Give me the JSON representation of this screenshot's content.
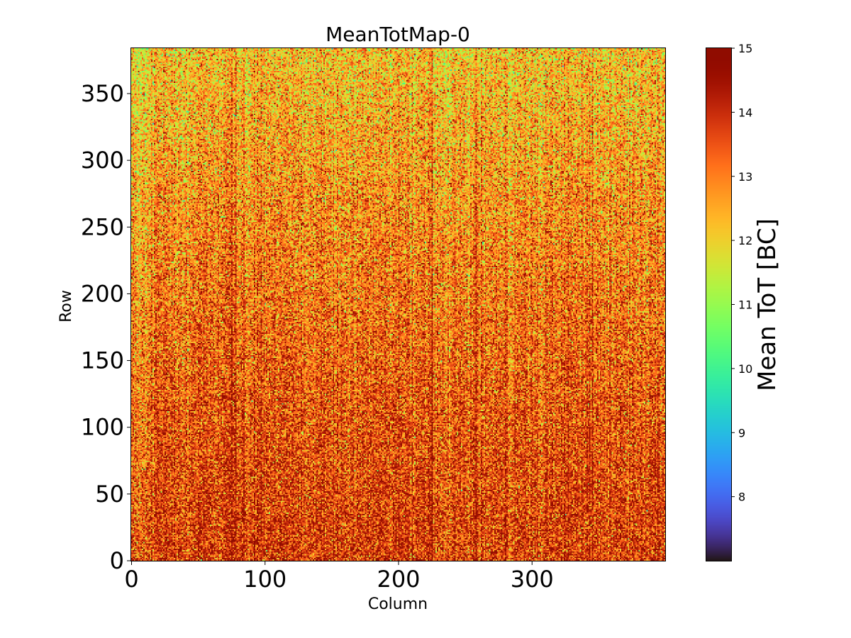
{
  "chart_data": {
    "type": "heatmap",
    "title": "MeanTotMap-0",
    "xlabel": "Column",
    "ylabel": "Row",
    "xlim": [
      0,
      400
    ],
    "ylim": [
      0,
      384
    ],
    "x_ticks": [
      0,
      100,
      200,
      300
    ],
    "y_ticks": [
      0,
      50,
      100,
      150,
      200,
      250,
      300,
      350
    ],
    "colorbar": {
      "label": "Mean ToT [BC]",
      "min": 7,
      "max": 15,
      "ticks": [
        8,
        9,
        10,
        11,
        12,
        13,
        14,
        15
      ],
      "colormap": "turbo"
    },
    "value_model": {
      "bottom_mean": 13.8,
      "top_mean": 12.2,
      "noise_sd": 0.9,
      "dark_stripe_columns": [
        75,
        78,
        190,
        225,
        258,
        262,
        345
      ],
      "light_stripe_columns": [
        236,
        252
      ]
    }
  }
}
